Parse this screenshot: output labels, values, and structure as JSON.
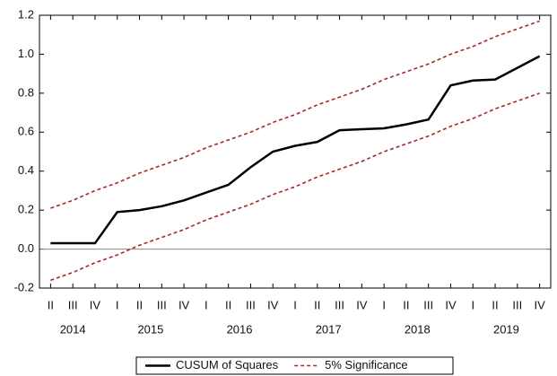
{
  "chart_data": {
    "type": "line",
    "categories": [
      "II",
      "III",
      "IV",
      "I",
      "II",
      "III",
      "IV",
      "I",
      "II",
      "III",
      "IV",
      "I",
      "II",
      "III",
      "IV",
      "I",
      "II",
      "III",
      "IV",
      "I",
      "II",
      "III",
      "IV"
    ],
    "x_groups": [
      "2014",
      "2015",
      "2016",
      "2017",
      "2018",
      "2019"
    ],
    "series": [
      {
        "name": "CUSUM of Squares",
        "color": "#000000",
        "style": "solid",
        "values": [
          0.03,
          0.03,
          0.03,
          0.19,
          0.2,
          0.22,
          0.25,
          0.29,
          0.33,
          0.42,
          0.5,
          0.53,
          0.55,
          0.61,
          0.615,
          0.62,
          0.64,
          0.665,
          0.84,
          0.865,
          0.87,
          0.93,
          0.99
        ]
      },
      {
        "name": "5% Significance",
        "color": "#a52a2a",
        "style": "dashed",
        "values": [
          0.21,
          0.25,
          0.3,
          0.34,
          0.39,
          0.43,
          0.47,
          0.52,
          0.56,
          0.6,
          0.65,
          0.69,
          0.74,
          0.78,
          0.82,
          0.87,
          0.91,
          0.95,
          1.0,
          1.04,
          1.09,
          1.13,
          1.17
        ],
        "lower_values": [
          -0.16,
          -0.12,
          -0.07,
          -0.03,
          0.02,
          0.06,
          0.1,
          0.15,
          0.19,
          0.23,
          0.28,
          0.32,
          0.37,
          0.41,
          0.45,
          0.5,
          0.54,
          0.58,
          0.63,
          0.67,
          0.72,
          0.76,
          0.8
        ]
      }
    ],
    "ylim": [
      -0.2,
      1.2
    ],
    "yticks": [
      -0.2,
      {
        "value": 0,
        "label": "0.0"
      },
      0.2,
      0.4,
      0.6,
      0.8,
      {
        "value": 1,
        "label": "1.0"
      },
      1.2
    ],
    "reference_line": 0,
    "legend": "bottom"
  }
}
